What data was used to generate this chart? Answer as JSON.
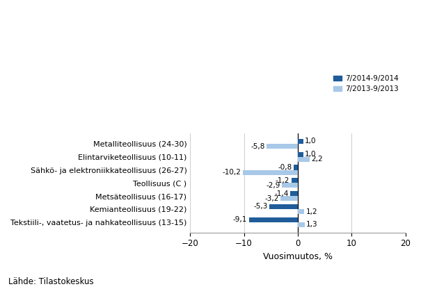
{
  "categories": [
    "Metalliteollisuus (24-30)",
    "Elintarviketeollisuus (10-11)",
    "Sähkö- ja elektroniikkateollisuus (26-27)",
    "Teollisuus (C )",
    "Metsäteollisuus (16-17)",
    "Kemianteollisuus (19-22)",
    "Tekstiili-, vaatetus- ja nahkateollisuus (13-15)"
  ],
  "series_2014": [
    1.0,
    1.0,
    -0.8,
    -1.2,
    -1.4,
    -5.3,
    -9.1
  ],
  "series_2013": [
    -5.8,
    2.2,
    -10.2,
    -2.9,
    -3.2,
    1.2,
    1.3
  ],
  "labels_2014": [
    "1,0",
    "1,0",
    "-0,8",
    "-1,2",
    "-1,4",
    "-5,3",
    "-9,1"
  ],
  "labels_2013": [
    "-5,8",
    "2,2",
    "-10,2",
    "-2,9",
    "-3,2",
    "1,2",
    "1,3"
  ],
  "color_2014": "#1f5c99",
  "color_2013": "#a8c8e8",
  "legend_2014": "7/2014-9/2014",
  "legend_2013": "7/2013-9/2013",
  "xlabel": "Vuosimuutos, %",
  "xlim": [
    -20,
    20
  ],
  "xticks": [
    -20,
    -10,
    0,
    10,
    20
  ],
  "source": "Lähde: Tilastokeskus",
  "bar_height": 0.38
}
